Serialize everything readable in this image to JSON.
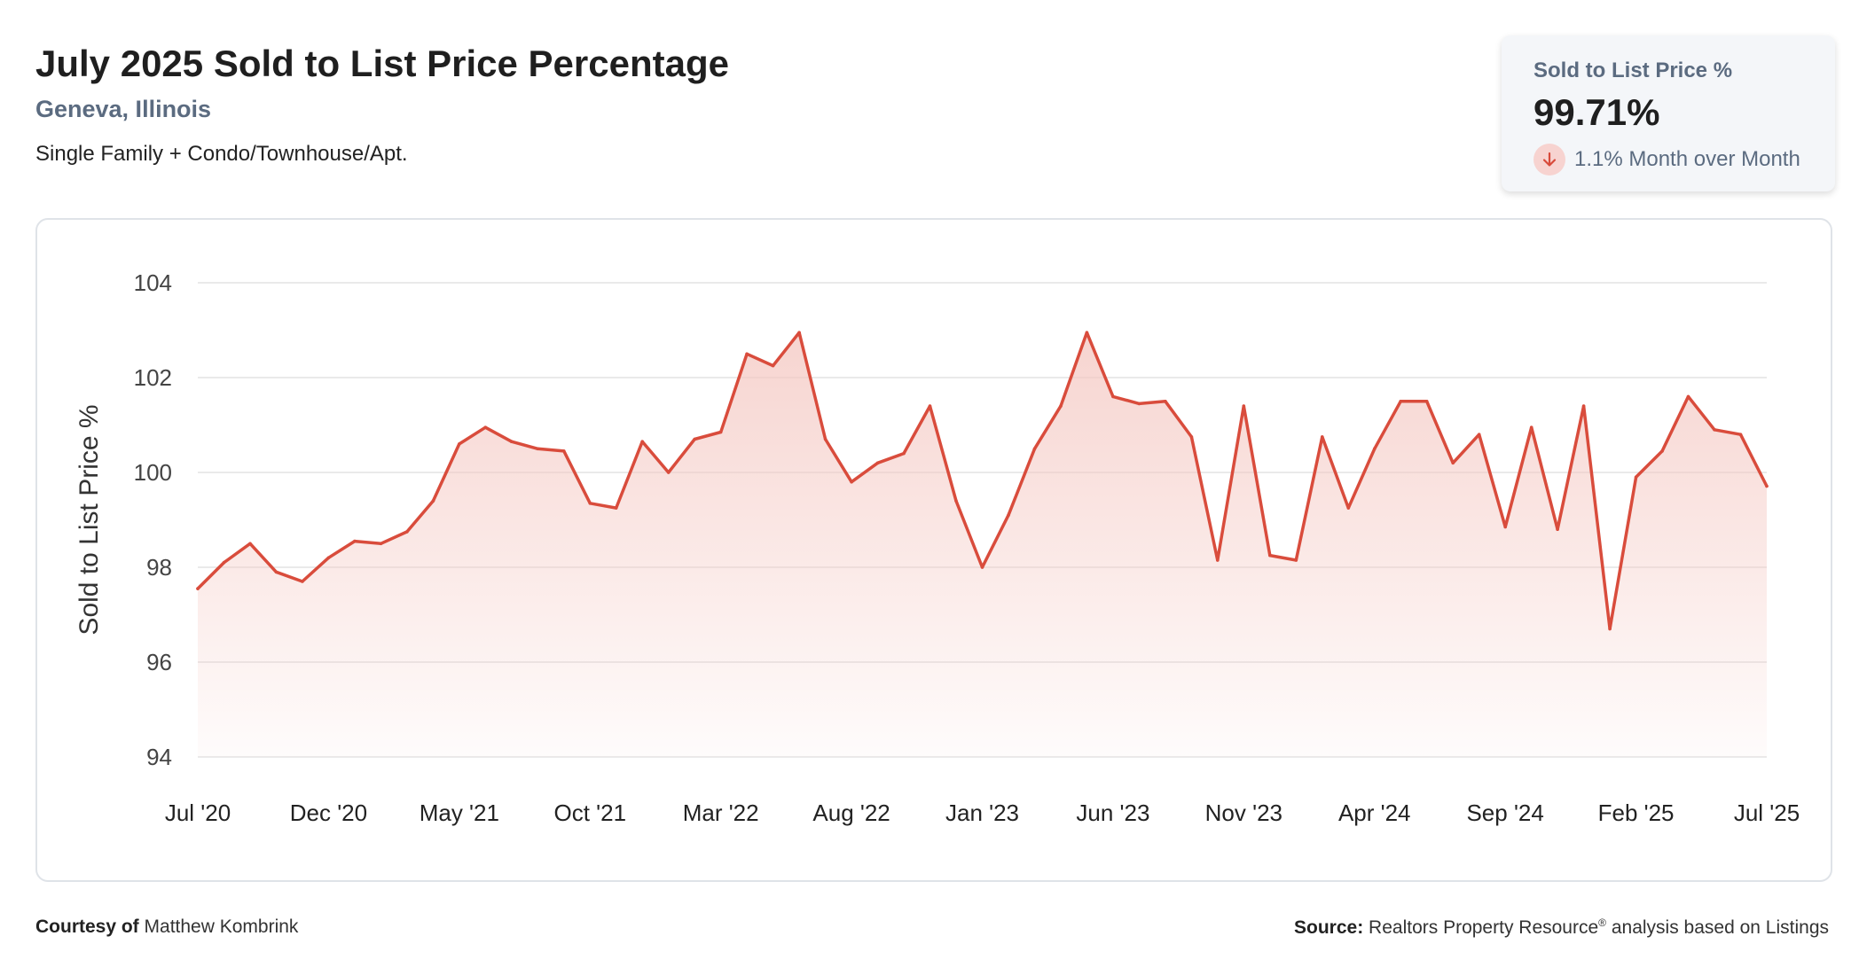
{
  "header": {
    "title": "July 2025 Sold to List Price Percentage",
    "location": "Geneva, Illinois",
    "segment": "Single Family + Condo/Townhouse/Apt."
  },
  "stat_card": {
    "label": "Sold to List Price %",
    "value": "99.71%",
    "change": "1.1% Month over Month",
    "direction_icon": "arrow-down-icon",
    "direction_color": "#d84a3a"
  },
  "footer": {
    "courtesy_label": "Courtesy of",
    "courtesy_name": "Matthew Kombrink",
    "source_label": "Source:",
    "source_text": "Realtors Property Resource",
    "source_mark": "®",
    "source_suffix": "analysis based on Listings"
  },
  "colors": {
    "line": "#d94c3c",
    "fill_top": "#f4c6c0",
    "grid": "#e3e3e3",
    "axis_text": "#444444"
  },
  "chart_data": {
    "type": "area",
    "title": "July 2025 Sold to List Price Percentage",
    "xlabel": "",
    "ylabel": "Sold to List Price %",
    "ylim": [
      94,
      104
    ],
    "yticks": [
      94,
      96,
      98,
      100,
      102,
      104
    ],
    "grid": true,
    "x": [
      "2020-07",
      "2020-08",
      "2020-09",
      "2020-10",
      "2020-11",
      "2020-12",
      "2021-01",
      "2021-02",
      "2021-03",
      "2021-04",
      "2021-05",
      "2021-06",
      "2021-07",
      "2021-08",
      "2021-09",
      "2021-10",
      "2021-11",
      "2021-12",
      "2022-01",
      "2022-02",
      "2022-03",
      "2022-04",
      "2022-05",
      "2022-06",
      "2022-07",
      "2022-08",
      "2022-09",
      "2022-10",
      "2022-11",
      "2022-12",
      "2023-01",
      "2023-02",
      "2023-03",
      "2023-04",
      "2023-05",
      "2023-06",
      "2023-07",
      "2023-08",
      "2023-09",
      "2023-10",
      "2023-11",
      "2023-12",
      "2024-01",
      "2024-02",
      "2024-03",
      "2024-04",
      "2024-05",
      "2024-06",
      "2024-07",
      "2024-08",
      "2024-09",
      "2024-10",
      "2024-11",
      "2024-12",
      "2025-01",
      "2025-02",
      "2025-03",
      "2025-04",
      "2025-05",
      "2025-06",
      "2025-07"
    ],
    "x_tick_labels": [
      "Jul '20",
      "Dec '20",
      "May '21",
      "Oct '21",
      "Mar '22",
      "Aug '22",
      "Jan '23",
      "Jun '23",
      "Nov '23",
      "Apr '24",
      "Sep '24",
      "Feb '25",
      "Jul '25"
    ],
    "series": [
      {
        "values": [
          97.55,
          98.1,
          98.5,
          97.9,
          97.7,
          98.2,
          98.55,
          98.5,
          98.75,
          99.4,
          100.6,
          100.95,
          100.65,
          100.5,
          100.45,
          99.35,
          99.25,
          100.65,
          100.0,
          100.7,
          100.85,
          102.5,
          102.25,
          102.95,
          100.7,
          99.8,
          100.2,
          100.4,
          101.4,
          99.4,
          98.0,
          99.1,
          100.5,
          101.4,
          102.95,
          101.6,
          101.45,
          101.5,
          100.75,
          98.15,
          101.4,
          98.25,
          98.15,
          100.75,
          99.25,
          100.5,
          101.5,
          101.5,
          100.2,
          100.8,
          98.85,
          100.95,
          98.8,
          101.4,
          96.7,
          99.9,
          100.45,
          101.6,
          100.9,
          100.8,
          99.71
        ]
      }
    ]
  }
}
